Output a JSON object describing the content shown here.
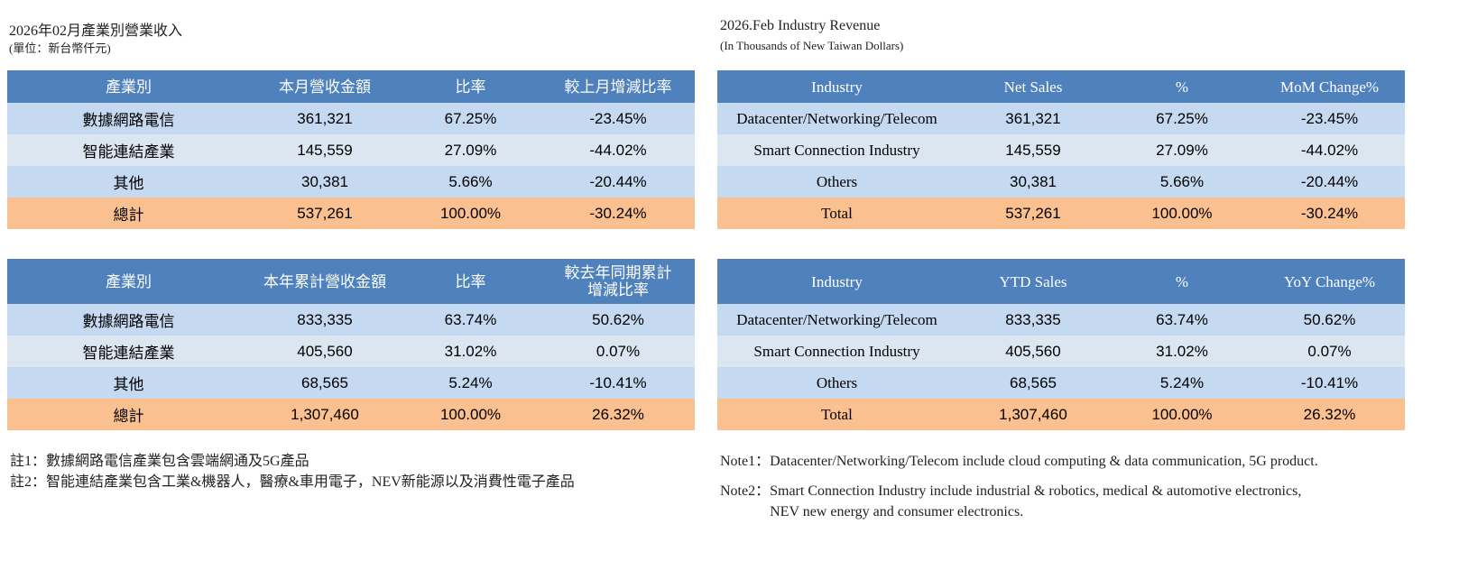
{
  "left": {
    "title": "2026年02月產業別營業收入",
    "unit": "(單位：新台幣仟元)",
    "tables": [
      {
        "header": [
          "產業別",
          "本月營收金額",
          "比率",
          "較上月增減比率"
        ],
        "rows": [
          [
            "數據網路電信",
            "361,321",
            "67.25%",
            "-23.45%"
          ],
          [
            "智能連結產業",
            "145,559",
            "27.09%",
            "-44.02%"
          ],
          [
            "其他",
            "30,381",
            "5.66%",
            "-20.44%"
          ],
          [
            "總計",
            "537,261",
            "100.00%",
            "-30.24%"
          ]
        ]
      },
      {
        "header": [
          "產業別",
          "本年累計營收金額",
          "比率",
          [
            "較去年同期累計",
            "增減比率"
          ]
        ],
        "rows": [
          [
            "數據網路電信",
            "833,335",
            "63.74%",
            "50.62%"
          ],
          [
            "智能連結產業",
            "405,560",
            "31.02%",
            "0.07%"
          ],
          [
            "其他",
            "68,565",
            "5.24%",
            "-10.41%"
          ],
          [
            "總計",
            "1,307,460",
            "100.00%",
            "26.32%"
          ]
        ]
      }
    ],
    "notes": [
      {
        "label": "註1：",
        "lines": [
          "數據網路電信產業包含雲端網通及5G產品"
        ]
      },
      {
        "label": "註2：",
        "lines": [
          "智能連結產業包含工業&機器人，醫療&車用電子，NEV新能源以及消費性電子產品"
        ]
      }
    ]
  },
  "right": {
    "title": "2026.Feb  Industry Revenue",
    "unit": "(In Thousands of New Taiwan Dollars)",
    "tables": [
      {
        "header": [
          "Industry",
          "Net Sales",
          "%",
          "MoM Change%"
        ],
        "rows": [
          [
            "Datacenter/Networking/Telecom",
            "361,321",
            "67.25%",
            "-23.45%"
          ],
          [
            "Smart Connection Industry",
            "145,559",
            "27.09%",
            "-44.02%"
          ],
          [
            "Others",
            "30,381",
            "5.66%",
            "-20.44%"
          ],
          [
            "Total",
            "537,261",
            "100.00%",
            "-30.24%"
          ]
        ]
      },
      {
        "header": [
          "Industry",
          "YTD Sales",
          "%",
          "YoY Change%"
        ],
        "rows": [
          [
            "Datacenter/Networking/Telecom",
            "833,335",
            "63.74%",
            "50.62%"
          ],
          [
            "Smart Connection Industry",
            "405,560",
            "31.02%",
            "0.07%"
          ],
          [
            "Others",
            "68,565",
            "5.24%",
            "-10.41%"
          ],
          [
            "Total",
            "1,307,460",
            "100.00%",
            "26.32%"
          ]
        ]
      }
    ],
    "notes": [
      {
        "label": "Note1：",
        "lines": [
          "Datacenter/Networking/Telecom include cloud computing & data communication, 5G product."
        ]
      },
      {
        "label": "Note2：",
        "lines": [
          "Smart Connection Industry include industrial & robotics, medical & automotive electronics,",
          "NEV new energy and consumer electronics."
        ]
      }
    ]
  }
}
